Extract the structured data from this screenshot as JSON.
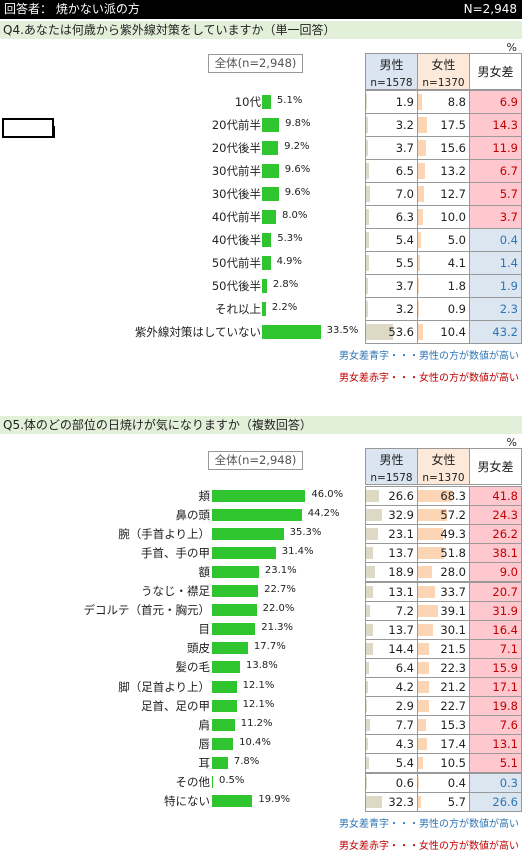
{
  "header": {
    "respondent": "回答者： 焼かない派の方",
    "n": "N=2,948"
  },
  "pct_mark": "%",
  "legend": {
    "blue": "男女差青字・・・男性の方が数値が高い",
    "red": "男女差赤字・・・女性の方が数値が高い"
  },
  "columns": {
    "male": "男性",
    "female": "女性",
    "n_male": "n=1578",
    "n_female": "n=1370",
    "diff": "男女差"
  },
  "chart_data": [
    {
      "type": "bar",
      "title": "Q4.あなたは何歳から紫外線対策をしていますか（単一回答）",
      "total_label": "全体(n=2,948)",
      "categories": [
        "10代",
        "20代前半",
        "20代後半",
        "30代前半",
        "30代後半",
        "40代前半",
        "40代後半",
        "50代前半",
        "50代後半",
        "それ以上",
        "紫外線対策はしていない"
      ],
      "values": [
        5.1,
        9.8,
        9.2,
        9.6,
        9.6,
        8.0,
        5.3,
        4.9,
        2.8,
        2.2,
        33.5
      ],
      "labels": [
        "5.1%",
        "9.8%",
        "9.2%",
        "9.6%",
        "9.6%",
        "8.0%",
        "5.3%",
        "4.9%",
        "2.8%",
        "2.2%",
        "33.5%"
      ],
      "male": [
        "1.9",
        "3.2",
        "3.7",
        "6.5",
        "7.0",
        "6.3",
        "5.4",
        "5.5",
        "3.7",
        "3.2",
        "53.6"
      ],
      "female": [
        "8.8",
        "17.5",
        "15.6",
        "13.2",
        "12.7",
        "10.0",
        "5.0",
        "4.1",
        "1.8",
        "0.9",
        "10.4"
      ],
      "diff": [
        "6.9",
        "14.3",
        "11.9",
        "6.7",
        "5.7",
        "3.7",
        "0.4",
        "1.4",
        "1.9",
        "2.3",
        "43.2"
      ],
      "diff_sign": [
        "f",
        "f",
        "f",
        "f",
        "f",
        "f",
        "m",
        "m",
        "m",
        "m",
        "m"
      ]
    },
    {
      "type": "bar",
      "title": "Q5.体のどの部位の日焼けが気になりますか（複数回答）",
      "total_label": "全体(n=2,948)",
      "categories": [
        "頬",
        "鼻の頭",
        "腕（手首より上）",
        "手首、手の甲",
        "額",
        "うなじ・襟足",
        "デコルテ（首元・胸元）",
        "目",
        "頭皮",
        "髪の毛",
        "脚（足首より上）",
        "足首、足の甲",
        "肩",
        "唇",
        "耳",
        "その他",
        "特にない"
      ],
      "values": [
        46.0,
        44.2,
        35.3,
        31.4,
        23.1,
        22.7,
        22.0,
        21.3,
        17.7,
        13.8,
        12.1,
        12.1,
        11.2,
        10.4,
        7.8,
        0.5,
        19.9
      ],
      "labels": [
        "46.0%",
        "44.2%",
        "35.3%",
        "31.4%",
        "23.1%",
        "22.7%",
        "22.0%",
        "21.3%",
        "17.7%",
        "13.8%",
        "12.1%",
        "12.1%",
        "11.2%",
        "10.4%",
        "7.8%",
        "0.5%",
        "19.9%"
      ],
      "male": [
        "26.6",
        "32.9",
        "23.1",
        "13.7",
        "18.9",
        "13.1",
        "7.2",
        "13.7",
        "14.4",
        "6.4",
        "4.2",
        "2.9",
        "7.7",
        "4.3",
        "5.4",
        "0.6",
        "32.3"
      ],
      "female": [
        "68.3",
        "57.2",
        "49.3",
        "51.8",
        "28.0",
        "33.7",
        "39.1",
        "30.1",
        "21.5",
        "22.3",
        "21.2",
        "22.7",
        "15.3",
        "17.4",
        "10.5",
        "0.4",
        "5.7"
      ],
      "diff": [
        "41.8",
        "24.3",
        "26.2",
        "38.1",
        "9.0",
        "20.7",
        "31.9",
        "16.4",
        "7.1",
        "15.9",
        "17.1",
        "19.8",
        "7.6",
        "13.1",
        "5.1",
        "0.3",
        "26.6"
      ],
      "diff_sign": [
        "f",
        "f",
        "f",
        "f",
        "f",
        "f",
        "f",
        "f",
        "f",
        "f",
        "f",
        "f",
        "f",
        "f",
        "f",
        "m",
        "m"
      ]
    }
  ]
}
